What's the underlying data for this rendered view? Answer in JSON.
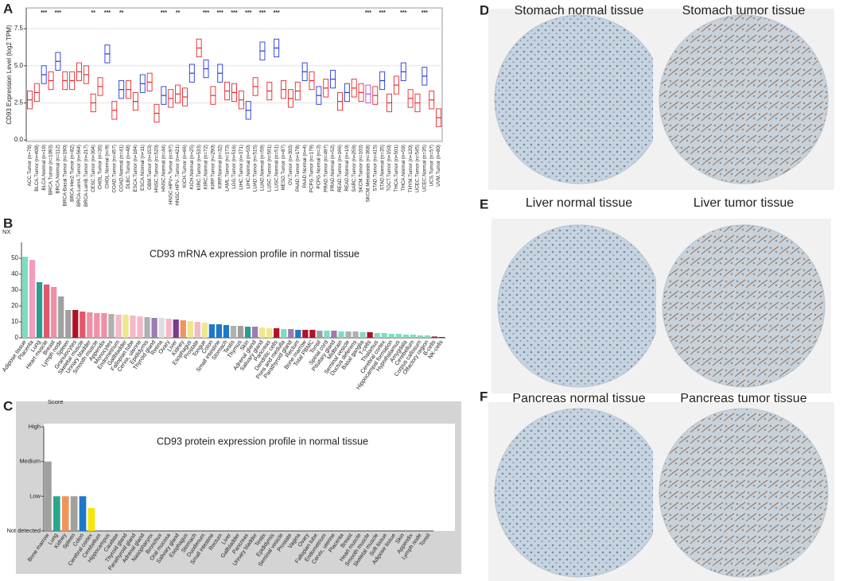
{
  "panel_labels": [
    "A",
    "B",
    "C",
    "D",
    "E",
    "F"
  ],
  "chart_data": [
    {
      "type": "box",
      "y_label": "CD93 Expression Level (log2 TPM)",
      "categories": [
        "ACC.Tumor (n=79)",
        "BLCA.Tumor (n=408)",
        "BLCA.Normal (n=19)",
        "BRCA.Tumor (n=1093)",
        "BRCA.Normal (n=112)",
        "BRCA-Basal.Tumor (n=190)",
        "BRCA-Her2.Tumor (n=82)",
        "BRCA-LumA.Tumor (n=564)",
        "BRCA-LumB.Tumor (n=217)",
        "CESC.Tumor (n=304)",
        "CHOL.Tumor (n=36)",
        "CHOL.Normal (n=9)",
        "COAD.Tumor (n=457)",
        "COAD.Normal (n=41)",
        "DLBC.Tumor (n=48)",
        "ESCA.Tumor (n=184)",
        "ESCA.Normal (n=11)",
        "GBM.Tumor (n=153)",
        "HNSC.Tumor (n=520)",
        "HNSC.Normal (n=44)",
        "HNSC-HPV+.Tumor (n=97)",
        "HNSC-HPV-.Tumor (n=421)",
        "KICH.Tumor (n=66)",
        "KICH.Normal (n=25)",
        "KIRC.Tumor (n=533)",
        "KIRC.Normal (n=72)",
        "KIRP.Tumor (n=290)",
        "KIRP.Normal (n=32)",
        "LAML.Tumor (n=173)",
        "LGG.Tumor (n=516)",
        "LIHC.Tumor (n=371)",
        "LIHC.Normal (n=50)",
        "LUAD.Tumor (n=515)",
        "LUAD.Normal (n=59)",
        "LUSC.Tumor (n=501)",
        "LUSC.Normal (n=51)",
        "MESO.Tumor (n=87)",
        "OV.Tumor (n=303)",
        "PAAD.Tumor (n=178)",
        "PAAD.Normal (n=4)",
        "PCPG.Tumor (n=179)",
        "PCPG.Normal (n=3)",
        "PRAD.Tumor (n=497)",
        "PRAD.Normal (n=52)",
        "READ.Tumor (n=166)",
        "READ.Normal (n=10)",
        "SARC.Tumor (n=259)",
        "SKCM.Tumor (n=103)",
        "SKCM.Metastasis (n=368)",
        "STAD.Tumor (n=415)",
        "STAD.Normal (n=35)",
        "TGCT.Tumor (n=150)",
        "THCA.Tumor (n=501)",
        "THCA.Normal (n=59)",
        "THYM.Tumor (n=120)",
        "UCEC.Tumor (n=545)",
        "UCEC.Normal (n=35)",
        "UCS.Tumor (n=57)",
        "UVM.Tumor (n=80)"
      ],
      "q1": [
        2.1,
        2.6,
        3.8,
        3.4,
        4.7,
        3.4,
        3.4,
        4.0,
        3.8,
        1.9,
        3.0,
        5.2,
        1.4,
        2.8,
        2.8,
        2.0,
        3.2,
        3.3,
        1.2,
        2.4,
        2.2,
        2.5,
        2.3,
        3.9,
        5.6,
        4.2,
        2.4,
        3.9,
        2.7,
        2.6,
        2.1,
        1.4,
        3.0,
        5.4,
        2.7,
        5.6,
        2.8,
        2.2,
        2.7,
        4.0,
        3.4,
        2.4,
        2.9,
        3.5,
        2.0,
        2.6,
        2.9,
        2.6,
        2.5,
        2.4,
        3.4,
        1.9,
        3.1,
        4.0,
        2.2,
        1.9,
        3.7,
        2.1,
        0.9
      ],
      "median": [
        2.7,
        3.2,
        4.4,
        4.0,
        5.3,
        4.0,
        4.0,
        4.6,
        4.4,
        2.5,
        3.6,
        5.8,
        2.0,
        3.4,
        3.4,
        2.6,
        3.8,
        3.9,
        1.8,
        3.0,
        2.8,
        3.1,
        2.9,
        4.5,
        6.2,
        4.8,
        3.0,
        4.5,
        3.3,
        3.2,
        2.7,
        2.0,
        3.6,
        6.0,
        3.3,
        6.2,
        3.4,
        2.8,
        3.3,
        4.6,
        4.0,
        3.0,
        3.5,
        4.1,
        2.6,
        3.2,
        3.5,
        3.2,
        3.1,
        3.0,
        4.0,
        2.5,
        3.7,
        4.6,
        2.8,
        2.5,
        4.3,
        2.7,
        1.5
      ],
      "q3": [
        3.3,
        3.8,
        5.0,
        4.6,
        5.9,
        4.6,
        4.6,
        5.2,
        5.0,
        3.1,
        4.2,
        6.4,
        2.6,
        4.0,
        4.0,
        3.2,
        4.4,
        4.5,
        2.4,
        3.6,
        3.4,
        3.7,
        3.5,
        5.1,
        6.8,
        5.4,
        3.6,
        5.1,
        3.9,
        3.8,
        3.3,
        2.6,
        4.2,
        6.6,
        3.9,
        6.8,
        4.0,
        3.4,
        3.9,
        5.2,
        4.6,
        3.6,
        4.1,
        4.7,
        3.2,
        3.8,
        4.1,
        3.8,
        3.7,
        3.6,
        4.6,
        3.1,
        4.3,
        5.2,
        3.4,
        3.1,
        4.9,
        3.3,
        2.1
      ],
      "box_colors": [
        "#e8262a",
        "#e8262a",
        "#2436d8",
        "#e8262a",
        "#2436d8",
        "#e8262a",
        "#e8262a",
        "#e8262a",
        "#e8262a",
        "#e8262a",
        "#e8262a",
        "#2436d8",
        "#e8262a",
        "#2436d8",
        "#e8262a",
        "#e8262a",
        "#2436d8",
        "#e8262a",
        "#e8262a",
        "#2436d8",
        "#e8262a",
        "#e8262a",
        "#e8262a",
        "#2436d8",
        "#e8262a",
        "#2436d8",
        "#e8262a",
        "#2436d8",
        "#e8262a",
        "#e8262a",
        "#e8262a",
        "#2436d8",
        "#e8262a",
        "#2436d8",
        "#e8262a",
        "#2436d8",
        "#e8262a",
        "#e8262a",
        "#e8262a",
        "#2436d8",
        "#e8262a",
        "#2436d8",
        "#e8262a",
        "#2436d8",
        "#e8262a",
        "#2436d8",
        "#e8262a",
        "#e8262a",
        "#a34fd6",
        "#e8262a",
        "#2436d8",
        "#e8262a",
        "#e8262a",
        "#2436d8",
        "#e8262a",
        "#e8262a",
        "#2436d8",
        "#e8262a",
        "#e8262a"
      ],
      "significance": [
        null,
        null,
        "***",
        null,
        "***",
        null,
        null,
        null,
        null,
        "**",
        null,
        "***",
        null,
        "**",
        null,
        null,
        null,
        null,
        null,
        "***",
        null,
        "**",
        null,
        null,
        null,
        "***",
        null,
        "***",
        null,
        "***",
        null,
        "***",
        null,
        "***",
        null,
        "***",
        null,
        null,
        null,
        null,
        null,
        null,
        null,
        null,
        null,
        null,
        null,
        null,
        "***",
        null,
        "***",
        null,
        null,
        "***",
        null,
        null,
        "***",
        null,
        null
      ],
      "ylim": [
        -0.1,
        8.9
      ],
      "yticks": [
        {
          "value": 0,
          "label": "0.0"
        },
        2.5,
        {
          "value": 5,
          "label": "5.0"
        },
        7.5
      ],
      "grid": true
    },
    {
      "type": "bar",
      "title": "CD93 mRNA expression profile in normal tissue",
      "y_label": "NX",
      "categories": [
        "Adipose tissue",
        "Placenta",
        "Lung",
        "Heart muscle",
        "Breast",
        "Lymph node",
        "Spleen",
        "Granulocytes",
        "Skeletal muscle",
        "Urinary bladder",
        "Smooth muscle",
        "Appendix",
        "Monocytes",
        "Endometrium",
        "Gallbladder",
        "Fallopian tube",
        "Cervix, uterine",
        "Epididymis",
        "Thyroid gland",
        "Retina",
        "Ovary",
        "Liver",
        "Kidney",
        "Esophagus",
        "Prostate",
        "Tongue",
        "Colon",
        "Small intestine",
        "Stomach",
        "Testis",
        "Thymus",
        "Skin",
        "Adrenal gland",
        "Salivary gland",
        "Pancreas",
        "Dendritic cells",
        "Pons and medulla",
        "Parathyroid gland",
        "Rectum",
        "Bone marrow",
        "Total PBMC",
        "Tonsil",
        "Spinal cord",
        "Pituitary gland",
        "Midbrain",
        "Seminal vesicle",
        "Ductus deferens",
        "Basal ganglia",
        "T-cells",
        "Thalamus",
        "Cerebral cortex",
        "Hippocampal formation",
        "Hypothalamus",
        "Amygdala",
        "Cerebellum",
        "Corpus callosum",
        "Olfactory region",
        "B-cells",
        "NK-cells"
      ],
      "values": [
        51,
        49,
        35,
        33.5,
        32,
        26,
        17.5,
        17.5,
        16.5,
        16,
        15.5,
        15.5,
        15,
        14.5,
        14.5,
        14,
        13.5,
        13,
        12.5,
        12.5,
        12,
        11.5,
        11,
        10.5,
        10,
        9.5,
        8.5,
        8.5,
        8,
        7.5,
        7.5,
        7,
        7,
        6.5,
        6,
        6,
        5.5,
        5.5,
        5,
        5,
        5,
        4.5,
        4.5,
        4.5,
        4,
        4,
        4,
        3.5,
        3.5,
        3,
        3,
        2.5,
        2.5,
        2,
        2,
        1.5,
        1.5,
        0.8,
        0.5
      ],
      "colors": [
        "#7fdcc4",
        "#f59ac0",
        "#2a9d8f",
        "#e4576b",
        "#f08fa6",
        "#a0a0a0",
        "#a0a0a0",
        "#b11226",
        "#e4576b",
        "#f08fa6",
        "#f08fa6",
        "#f08fa6",
        "#b0b0b0",
        "#f5b8c8",
        "#f0e68c",
        "#f5b8c8",
        "#f5b8c8",
        "#b0b0b0",
        "#9d7bb0",
        "#dddddd",
        "#f5b8c8",
        "#7a3b8f",
        "#f0955a",
        "#f0e68c",
        "#f5b8c8",
        "#f0e68c",
        "#1f78c8",
        "#1f78c8",
        "#1f78c8",
        "#b0b0b0",
        "#a0a0a0",
        "#2a9d8f",
        "#9d7bb0",
        "#f0e68c",
        "#f0e68c",
        "#b11226",
        "#7fdcc4",
        "#9d7bb0",
        "#1f78c8",
        "#b11226",
        "#b11226",
        "#a0a0a0",
        "#7fdcc4",
        "#9d7bb0",
        "#7fdcc4",
        "#b0b0b0",
        "#b0b0b0",
        "#7fdcc4",
        "#b11226",
        "#7fdcc4",
        "#7fdcc4",
        "#7fdcc4",
        "#7fdcc4",
        "#7fdcc4",
        "#7fdcc4",
        "#7fdcc4",
        "#7fdcc4",
        "#b11226",
        "#b11226"
      ],
      "ylim": [
        0,
        55
      ],
      "yticks": [
        0,
        10,
        20,
        30,
        40,
        50
      ]
    },
    {
      "type": "bar",
      "title": "CD93 protein expression profile in normal tissue",
      "y_label": "Score",
      "categories": [
        "Bone marrow",
        "Lung",
        "Kidney",
        "Spleen",
        "Colon",
        "Cerebral cortex",
        "Cerebellum",
        "Hippocampus",
        "Caudate",
        "Thyroid gland",
        "Parathyroid gland",
        "Adrenal gland",
        "Nasopharynx",
        "Bronchus",
        "Oral mucosa",
        "Salivary gland",
        "Esophagus",
        "Stomach",
        "Duodenum",
        "Small intestine",
        "Rectum",
        "Liver",
        "Gallbladder",
        "Pancreas",
        "Urinary bladder",
        "Testis",
        "Epididymis",
        "Seminal vesicle",
        "Prostate",
        "Vagina",
        "Ovary",
        "Fallopian tube",
        "Endometrium",
        "Cervix, uterine",
        "Placenta",
        "Breast",
        "Heart muscle",
        "Smooth muscle",
        "Skeletal muscle",
        "Soft tissue",
        "Adipose tissue",
        "Skin",
        "Appendix",
        "Lymph node",
        "Tonsil"
      ],
      "values": [
        2,
        1,
        1,
        1,
        1,
        0.66,
        0,
        0,
        0,
        0,
        0,
        0,
        0,
        0,
        0,
        0,
        0,
        0,
        0,
        0,
        0,
        0,
        0,
        0,
        0,
        0,
        0,
        0,
        0,
        0,
        0,
        0,
        0,
        0,
        0,
        0,
        0,
        0,
        0,
        0,
        0,
        0,
        0,
        0,
        0
      ],
      "colors": [
        "#a0a0a0",
        "#27a88e",
        "#f0955a",
        "#a0a0a0",
        "#1f78c8",
        "#f5e60a",
        "#a0a0a0",
        "#a0a0a0",
        "#a0a0a0",
        "#a0a0a0",
        "#a0a0a0",
        "#a0a0a0",
        "#a0a0a0",
        "#a0a0a0",
        "#a0a0a0",
        "#a0a0a0",
        "#a0a0a0",
        "#a0a0a0",
        "#a0a0a0",
        "#a0a0a0",
        "#a0a0a0",
        "#a0a0a0",
        "#a0a0a0",
        "#a0a0a0",
        "#a0a0a0",
        "#a0a0a0",
        "#a0a0a0",
        "#a0a0a0",
        "#a0a0a0",
        "#a0a0a0",
        "#a0a0a0",
        "#a0a0a0",
        "#a0a0a0",
        "#a0a0a0",
        "#a0a0a0",
        "#a0a0a0",
        "#a0a0a0",
        "#a0a0a0",
        "#a0a0a0",
        "#a0a0a0",
        "#a0a0a0",
        "#a0a0a0",
        "#a0a0a0",
        "#a0a0a0",
        "#a0a0a0"
      ],
      "ylim": [
        0,
        3
      ],
      "yticks": [
        {
          "value": 0,
          "label": "Not detected"
        },
        {
          "value": 1,
          "label": "Low"
        },
        {
          "value": 2,
          "label": "Medium"
        },
        {
          "value": 3,
          "label": "High"
        }
      ]
    }
  ],
  "images": [
    {
      "title": "Stomach normal tissue"
    },
    {
      "title": "Stomach tumor tissue"
    },
    {
      "title": "Liver normal tissue"
    },
    {
      "title": "Liver tumor tissue"
    },
    {
      "title": "Pancreas normal tissue"
    },
    {
      "title": "Pancreas tumor tissue"
    }
  ]
}
